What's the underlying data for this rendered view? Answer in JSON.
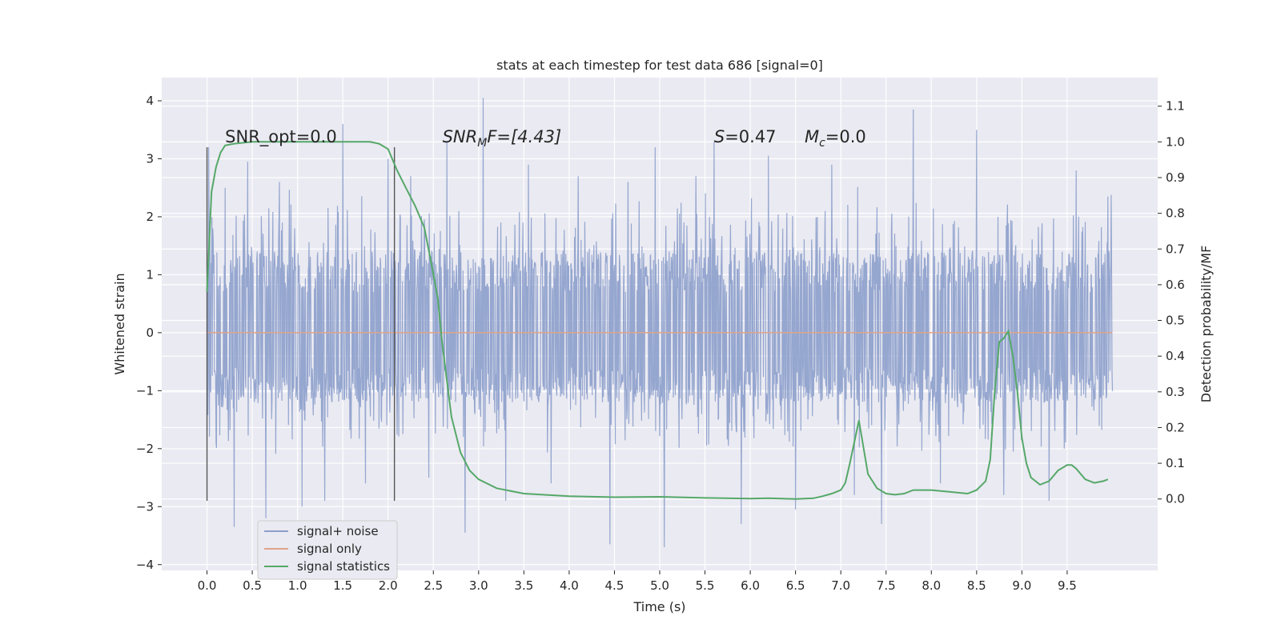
{
  "chart_data": {
    "type": "line",
    "title": "stats at each timestep for test data 686 [signal=0]",
    "xlabel": "Time (s)",
    "ylabel": "Whitened strain",
    "ylabel_right": "Detection probability/MF",
    "xlim": [
      -0.5,
      10.5
    ],
    "ylim": [
      -4.1,
      4.4
    ],
    "ylim_right": [
      -0.2,
      1.18
    ],
    "xticks": [
      "0.0",
      "0.5",
      "1.0",
      "1.5",
      "2.0",
      "2.5",
      "3.0",
      "3.5",
      "4.0",
      "4.5",
      "5.0",
      "5.5",
      "6.0",
      "6.5",
      "7.0",
      "7.5",
      "8.0",
      "8.5",
      "9.0",
      "9.5"
    ],
    "yticks_left": [
      "4",
      "3",
      "2",
      "1",
      "0",
      "−1",
      "−2",
      "−3",
      "−4"
    ],
    "yticks_right": [
      "1.1",
      "1.0",
      "0.9",
      "0.8",
      "0.7",
      "0.6",
      "0.5",
      "0.4",
      "0.3",
      "0.2",
      "0.1",
      "0.0"
    ],
    "grid": true,
    "legend": {
      "placement": "lower-left",
      "entries": [
        {
          "label": "signal+ noise",
          "color": "#8c9fcb"
        },
        {
          "label": "signal only",
          "color": "#e0a488"
        },
        {
          "label": "signal statistics",
          "color": "#55a868"
        }
      ]
    },
    "annotations": {
      "snr_opt": {
        "label": "SNR_opt=",
        "value": "0.0",
        "x": 0.2,
        "y": 3.2
      },
      "snr_mf": {
        "base": "SNR",
        "sub": "M",
        "rest": "F=[4.43]",
        "x": 2.6,
        "y": 3.2
      },
      "s_stat": {
        "base": "S",
        "rest": "=0.47",
        "x": 5.6,
        "y": 3.2
      },
      "mc": {
        "base": "M",
        "sub": "c",
        "rest": "=0.0",
        "x": 6.6,
        "y": 3.2
      }
    },
    "vlines": [
      {
        "x": 0.0,
        "ymin": -2.9,
        "ymax": 3.2
      },
      {
        "x": 2.07,
        "ymin": -2.9,
        "ymax": 3.2
      }
    ],
    "series": [
      {
        "name": "signal+ noise",
        "color": "#8c9fcb",
        "style": "noise",
        "x_range": [
          0.0,
          10.0
        ],
        "typical_upper": 1.4,
        "typical_lower": -1.2,
        "y_peaks": [
          [
            0.02,
            3.2
          ],
          [
            0.1,
            -1.9
          ],
          [
            0.2,
            2.5
          ],
          [
            0.3,
            -3.35
          ],
          [
            0.45,
            2.95
          ],
          [
            0.65,
            -3.2
          ],
          [
            0.8,
            2.6
          ],
          [
            1.05,
            -3.0
          ],
          [
            1.3,
            -2.9
          ],
          [
            1.5,
            3.6
          ],
          [
            1.75,
            -2.6
          ],
          [
            2.0,
            3.0
          ],
          [
            2.25,
            2.7
          ],
          [
            2.45,
            -2.5
          ],
          [
            2.65,
            3.3
          ],
          [
            2.85,
            -3.45
          ],
          [
            3.05,
            4.05
          ],
          [
            3.3,
            -2.9
          ],
          [
            3.55,
            2.9
          ],
          [
            3.8,
            -2.6
          ],
          [
            4.1,
            2.7
          ],
          [
            4.45,
            -3.65
          ],
          [
            4.65,
            2.6
          ],
          [
            4.95,
            3.2
          ],
          [
            5.05,
            -3.7
          ],
          [
            5.4,
            2.7
          ],
          [
            5.6,
            3.3
          ],
          [
            5.9,
            -3.3
          ],
          [
            6.2,
            3.05
          ],
          [
            6.5,
            -3.05
          ],
          [
            6.9,
            2.9
          ],
          [
            7.15,
            -2.8
          ],
          [
            7.45,
            -3.3
          ],
          [
            7.8,
            3.85
          ],
          [
            8.1,
            -2.6
          ],
          [
            8.5,
            3.5
          ],
          [
            8.8,
            -2.8
          ],
          [
            9.3,
            -2.9
          ],
          [
            9.6,
            2.8
          ],
          [
            9.95,
            2.35
          ]
        ]
      },
      {
        "name": "signal only",
        "color": "#e0a488",
        "x": [
          0.0,
          10.0
        ],
        "y": [
          0.0,
          0.0
        ]
      },
      {
        "name": "signal statistics",
        "color": "#55a868",
        "axis": "right",
        "x": [
          0.0,
          0.05,
          0.1,
          0.15,
          0.2,
          0.3,
          0.5,
          1.0,
          1.5,
          1.8,
          1.9,
          2.0,
          2.1,
          2.2,
          2.3,
          2.4,
          2.5,
          2.55,
          2.6,
          2.7,
          2.8,
          2.9,
          3.0,
          3.2,
          3.5,
          4.0,
          4.5,
          5.0,
          5.5,
          6.0,
          6.2,
          6.5,
          6.7,
          6.8,
          6.9,
          7.0,
          7.05,
          7.1,
          7.2,
          7.3,
          7.4,
          7.5,
          7.6,
          7.7,
          7.8,
          8.0,
          8.2,
          8.4,
          8.5,
          8.6,
          8.65,
          8.7,
          8.75,
          8.8,
          8.85,
          8.9,
          8.95,
          9.0,
          9.05,
          9.1,
          9.2,
          9.3,
          9.4,
          9.5,
          9.55,
          9.6,
          9.7,
          9.8,
          9.9,
          9.95
        ],
        "y": [
          0.58,
          0.86,
          0.93,
          0.97,
          0.99,
          0.995,
          1.0,
          1.0,
          1.0,
          1.0,
          0.995,
          0.98,
          0.92,
          0.87,
          0.82,
          0.76,
          0.63,
          0.56,
          0.43,
          0.23,
          0.13,
          0.08,
          0.055,
          0.03,
          0.015,
          0.008,
          0.005,
          0.006,
          0.003,
          0.001,
          0.002,
          0.0,
          0.002,
          0.008,
          0.015,
          0.025,
          0.045,
          0.1,
          0.22,
          0.07,
          0.03,
          0.015,
          0.012,
          0.015,
          0.025,
          0.025,
          0.02,
          0.015,
          0.025,
          0.05,
          0.11,
          0.3,
          0.44,
          0.45,
          0.47,
          0.4,
          0.3,
          0.17,
          0.1,
          0.06,
          0.04,
          0.05,
          0.08,
          0.095,
          0.095,
          0.085,
          0.055,
          0.045,
          0.05,
          0.055
        ]
      }
    ]
  }
}
